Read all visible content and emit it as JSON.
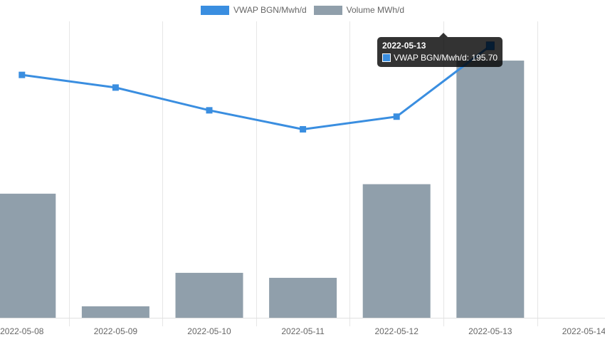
{
  "chart_data": {
    "type": "bar",
    "categories": [
      "2022-05-08",
      "2022-05-09",
      "2022-05-10",
      "2022-05-11",
      "2022-05-12",
      "2022-05-13",
      "2022-05-14"
    ],
    "series": [
      {
        "name": "VWAP BGN/Mwh/d",
        "type": "line",
        "color": "#3a8ee0",
        "values": [
          193.4,
          192.4,
          190.6,
          189.1,
          190.1,
          195.7,
          null
        ]
      },
      {
        "name": "Volume MWh/d",
        "type": "bar",
        "color": "#909fab",
        "values": [
          4970,
          460,
          1800,
          1600,
          5350,
          10300,
          null
        ]
      }
    ],
    "legend_position": "top-center",
    "grid": true,
    "tooltip": {
      "title": "2022-05-13",
      "label": "VWAP BGN/Mwh/d: 195.70"
    }
  }
}
